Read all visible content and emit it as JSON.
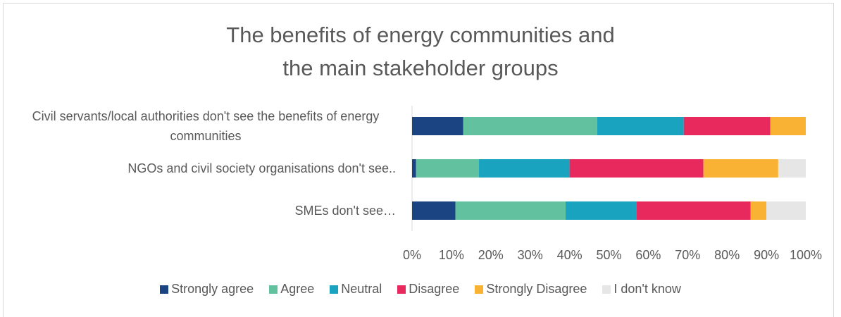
{
  "chart_data": {
    "type": "stacked_barh",
    "title": "The benefits of energy communities and the main stakeholder groups",
    "categories": [
      "Civil servants/local authorities don't see the benefits of energy communities",
      "NGOs and civil society organisations don't see..",
      "SMEs don't see…"
    ],
    "series": [
      {
        "name": "Strongly agree",
        "color": "#1a4582",
        "values": [
          13,
          1,
          11
        ]
      },
      {
        "name": "Agree",
        "color": "#62c2a0",
        "values": [
          34,
          16,
          28
        ]
      },
      {
        "name": "Neutral",
        "color": "#1aa3bf",
        "values": [
          22,
          23,
          18
        ]
      },
      {
        "name": "Disagree",
        "color": "#e8295d",
        "values": [
          22,
          34,
          29
        ]
      },
      {
        "name": "Strongly Disagree",
        "color": "#f9b233",
        "values": [
          9,
          19,
          4
        ]
      },
      {
        "name": "I don't know",
        "color": "#e6e6e6",
        "values": [
          0,
          7,
          10
        ]
      }
    ],
    "xlim": [
      0,
      100
    ],
    "xticks": [
      {
        "value": 0,
        "label": "0%"
      },
      {
        "value": 10,
        "label": "10%"
      },
      {
        "value": 20,
        "label": "20%"
      },
      {
        "value": 30,
        "label": "30%"
      },
      {
        "value": 40,
        "label": "40%"
      },
      {
        "value": 50,
        "label": "50%"
      },
      {
        "value": 60,
        "label": "60%"
      },
      {
        "value": 70,
        "label": "70%"
      },
      {
        "value": 80,
        "label": "80%"
      },
      {
        "value": 90,
        "label": "90%"
      },
      {
        "value": 100,
        "label": "100%"
      }
    ],
    "legend": "bottom"
  }
}
